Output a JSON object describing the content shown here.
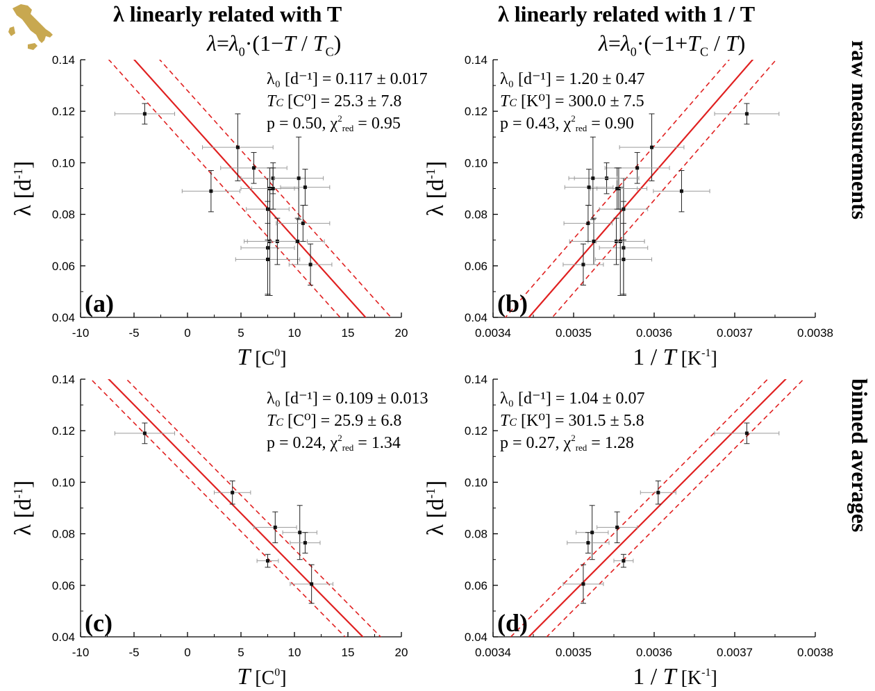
{
  "figure": {
    "col_titles": [
      "λ linearly related with T",
      "λ linearly related with 1 / T"
    ],
    "col_equations": [
      "λ=λ₀·(1−T / T_C)",
      "λ=λ₀·(−1+T_C / T)"
    ],
    "row_labels": [
      "raw measurements",
      "binned averages"
    ],
    "colors": {
      "fit": "#e02020",
      "points": "#111111",
      "xerr": "#9a9a9a",
      "logo": "#c8a850"
    }
  },
  "chart_data": [
    {
      "id": "a",
      "type": "scatter",
      "panel_label": "(a)",
      "xlabel": "T [C⁰]",
      "ylabel": "λ [d⁻¹]",
      "xlim": [
        -10,
        20
      ],
      "ylim": [
        0.04,
        0.14
      ],
      "xticks": [
        "-10",
        "-5",
        "0",
        "5",
        "10",
        "15",
        "20"
      ],
      "yticks": [
        "0.04",
        "0.06",
        "0.08",
        "0.10",
        "0.12",
        "0.14"
      ],
      "annotations": [
        "λ₀ [d⁻¹] = 0.117 ± 0.017",
        "T_C [C⁰] = 25.3 ± 7.8",
        "p = 0.50, χ²_red = 0.95"
      ],
      "fit": {
        "form": "lambda0*(1 - x/Tc)",
        "lambda0": 0.117,
        "Tc": 25.3,
        "band_offset": 0.011
      },
      "points": [
        {
          "x": -4.0,
          "y": 0.119,
          "xerr": 2.8,
          "yerr": 0.004
        },
        {
          "x": 2.2,
          "y": 0.089,
          "xerr": 2.7,
          "yerr": 0.008
        },
        {
          "x": 4.7,
          "y": 0.106,
          "xerr": 3.3,
          "yerr": 0.013
        },
        {
          "x": 6.2,
          "y": 0.098,
          "xerr": 3.1,
          "yerr": 0.006
        },
        {
          "x": 7.5,
          "y": 0.082,
          "xerr": 2.0,
          "yerr": 0.012
        },
        {
          "x": 7.5,
          "y": 0.067,
          "xerr": 2.5,
          "yerr": 0.018
        },
        {
          "x": 7.5,
          "y": 0.0625,
          "xerr": 3.0,
          "yerr": 0.014
        },
        {
          "x": 7.7,
          "y": 0.0695,
          "xerr": 2.4,
          "yerr": 0.021
        },
        {
          "x": 7.7,
          "y": 0.09,
          "xerr": 2.7,
          "yerr": 0.008
        },
        {
          "x": 8.0,
          "y": 0.094,
          "xerr": 3.0,
          "yerr": 0.006
        },
        {
          "x": 8.0,
          "y": 0.09,
          "xerr": 2.0,
          "yerr": 0.008
        },
        {
          "x": 8.4,
          "y": 0.0695,
          "xerr": 2.8,
          "yerr": 0.009
        },
        {
          "x": 10.3,
          "y": 0.0695,
          "xerr": 2.5,
          "yerr": 0.009
        },
        {
          "x": 10.4,
          "y": 0.094,
          "xerr": 2.3,
          "yerr": 0.016
        },
        {
          "x": 10.8,
          "y": 0.0765,
          "xerr": 2.5,
          "yerr": 0.007
        },
        {
          "x": 11.0,
          "y": 0.0905,
          "xerr": 2.3,
          "yerr": 0.007
        },
        {
          "x": 11.5,
          "y": 0.0605,
          "xerr": 2.0,
          "yerr": 0.008
        }
      ]
    },
    {
      "id": "b",
      "type": "scatter",
      "panel_label": "(b)",
      "xlabel": "1 / T [K⁻¹]",
      "ylabel": "λ [d⁻¹]",
      "xlim": [
        0.0034,
        0.0038
      ],
      "ylim": [
        0.04,
        0.14
      ],
      "xticks": [
        "0.0034",
        "0.0035",
        "0.0036",
        "0.0037",
        "0.0038"
      ],
      "yticks": [
        "0.04",
        "0.06",
        "0.08",
        "0.10",
        "0.12",
        "0.14"
      ],
      "annotations": [
        "λ₀ [d⁻¹] = 1.20 ± 0.47",
        "T_C [K⁰] = 300.0 ± 7.5",
        "p = 0.43, χ²_red = 0.90"
      ],
      "fit": {
        "form": "lambda0*(-1 + Tc*x)",
        "lambda0": 1.2,
        "Tc": 300.0,
        "band_offset": 0.0105
      },
      "points": [
        {
          "x": 0.003715,
          "y": 0.119,
          "xerr": 4e-05,
          "yerr": 0.004
        },
        {
          "x": 0.003634,
          "y": 0.089,
          "xerr": 3.5e-05,
          "yerr": 0.008
        },
        {
          "x": 0.003597,
          "y": 0.106,
          "xerr": 4e-05,
          "yerr": 0.013
        },
        {
          "x": 0.003579,
          "y": 0.098,
          "xerr": 4e-05,
          "yerr": 0.006
        },
        {
          "x": 0.003562,
          "y": 0.082,
          "xerr": 3e-05,
          "yerr": 0.012
        },
        {
          "x": 0.003562,
          "y": 0.067,
          "xerr": 3e-05,
          "yerr": 0.018
        },
        {
          "x": 0.003562,
          "y": 0.0625,
          "xerr": 3.5e-05,
          "yerr": 0.014
        },
        {
          "x": 0.003558,
          "y": 0.0695,
          "xerr": 3e-05,
          "yerr": 0.021
        },
        {
          "x": 0.003556,
          "y": 0.09,
          "xerr": 3.5e-05,
          "yerr": 0.008
        },
        {
          "x": 0.003541,
          "y": 0.094,
          "xerr": 4e-05,
          "yerr": 0.006
        },
        {
          "x": 0.003554,
          "y": 0.09,
          "xerr": 2.5e-05,
          "yerr": 0.008
        },
        {
          "x": 0.003553,
          "y": 0.0695,
          "xerr": 3.5e-05,
          "yerr": 0.009
        },
        {
          "x": 0.003525,
          "y": 0.0695,
          "xerr": 3e-05,
          "yerr": 0.009
        },
        {
          "x": 0.003524,
          "y": 0.094,
          "xerr": 3e-05,
          "yerr": 0.016
        },
        {
          "x": 0.003518,
          "y": 0.0765,
          "xerr": 3e-05,
          "yerr": 0.007
        },
        {
          "x": 0.003519,
          "y": 0.0905,
          "xerr": 3e-05,
          "yerr": 0.007
        },
        {
          "x": 0.003512,
          "y": 0.0605,
          "xerr": 2.5e-05,
          "yerr": 0.008
        }
      ]
    },
    {
      "id": "c",
      "type": "scatter",
      "panel_label": "(c)",
      "xlabel": "T [C⁰]",
      "ylabel": "λ [d⁻¹]",
      "xlim": [
        -10,
        20
      ],
      "ylim": [
        0.04,
        0.14
      ],
      "xticks": [
        "-10",
        "-5",
        "0",
        "5",
        "10",
        "15",
        "20"
      ],
      "yticks": [
        "0.04",
        "0.06",
        "0.08",
        "0.10",
        "0.12",
        "0.14"
      ],
      "annotations": [
        "λ₀ [d⁻¹] = 0.109 ± 0.013",
        "T_C [C⁰] = 25.9 ± 6.8",
        "p = 0.24, χ²_red = 1.34"
      ],
      "fit": {
        "form": "lambda0*(1 - x/Tc)",
        "lambda0": 0.109,
        "Tc": 25.9,
        "band_offset": 0.007
      },
      "points": [
        {
          "x": -4.0,
          "y": 0.119,
          "xerr": 2.8,
          "yerr": 0.004
        },
        {
          "x": 4.2,
          "y": 0.096,
          "xerr": 1.7,
          "yerr": 0.0045
        },
        {
          "x": 8.2,
          "y": 0.0825,
          "xerr": 2.0,
          "yerr": 0.006
        },
        {
          "x": 7.5,
          "y": 0.0695,
          "xerr": 1.0,
          "yerr": 0.0025
        },
        {
          "x": 10.5,
          "y": 0.0805,
          "xerr": 1.6,
          "yerr": 0.0105
        },
        {
          "x": 11.0,
          "y": 0.0765,
          "xerr": 1.4,
          "yerr": 0.004
        },
        {
          "x": 11.6,
          "y": 0.0605,
          "xerr": 2.0,
          "yerr": 0.0075
        }
      ]
    },
    {
      "id": "d",
      "type": "scatter",
      "panel_label": "(d)",
      "xlabel": "1 / T [K⁻¹]",
      "ylabel": "λ [d⁻¹]",
      "xlim": [
        0.0034,
        0.0038
      ],
      "ylim": [
        0.04,
        0.14
      ],
      "xticks": [
        "0.0034",
        "0.0035",
        "0.0036",
        "0.0037",
        "0.0038"
      ],
      "yticks": [
        "0.04",
        "0.06",
        "0.08",
        "0.10",
        "0.12",
        "0.14"
      ],
      "annotations": [
        "λ₀ [d⁻¹] = 1.04 ± 0.07",
        "T_C [K⁰] = 301.5 ± 5.8",
        "p = 0.27, χ²_red = 1.28"
      ],
      "fit": {
        "form": "lambda0*(-1 + Tc*x)",
        "lambda0": 1.04,
        "Tc": 301.5,
        "band_offset": 0.007
      },
      "points": [
        {
          "x": 0.003715,
          "y": 0.119,
          "xerr": 4e-05,
          "yerr": 0.004
        },
        {
          "x": 0.003605,
          "y": 0.096,
          "xerr": 2.2e-05,
          "yerr": 0.0045
        },
        {
          "x": 0.003554,
          "y": 0.0825,
          "xerr": 2.5e-05,
          "yerr": 0.006
        },
        {
          "x": 0.003562,
          "y": 0.0695,
          "xerr": 1.2e-05,
          "yerr": 0.0025
        },
        {
          "x": 0.003523,
          "y": 0.0805,
          "xerr": 2e-05,
          "yerr": 0.0105
        },
        {
          "x": 0.003518,
          "y": 0.0765,
          "xerr": 2.6e-05,
          "yerr": 0.004
        },
        {
          "x": 0.003512,
          "y": 0.0605,
          "xerr": 2.5e-05,
          "yerr": 0.0075
        }
      ]
    }
  ]
}
